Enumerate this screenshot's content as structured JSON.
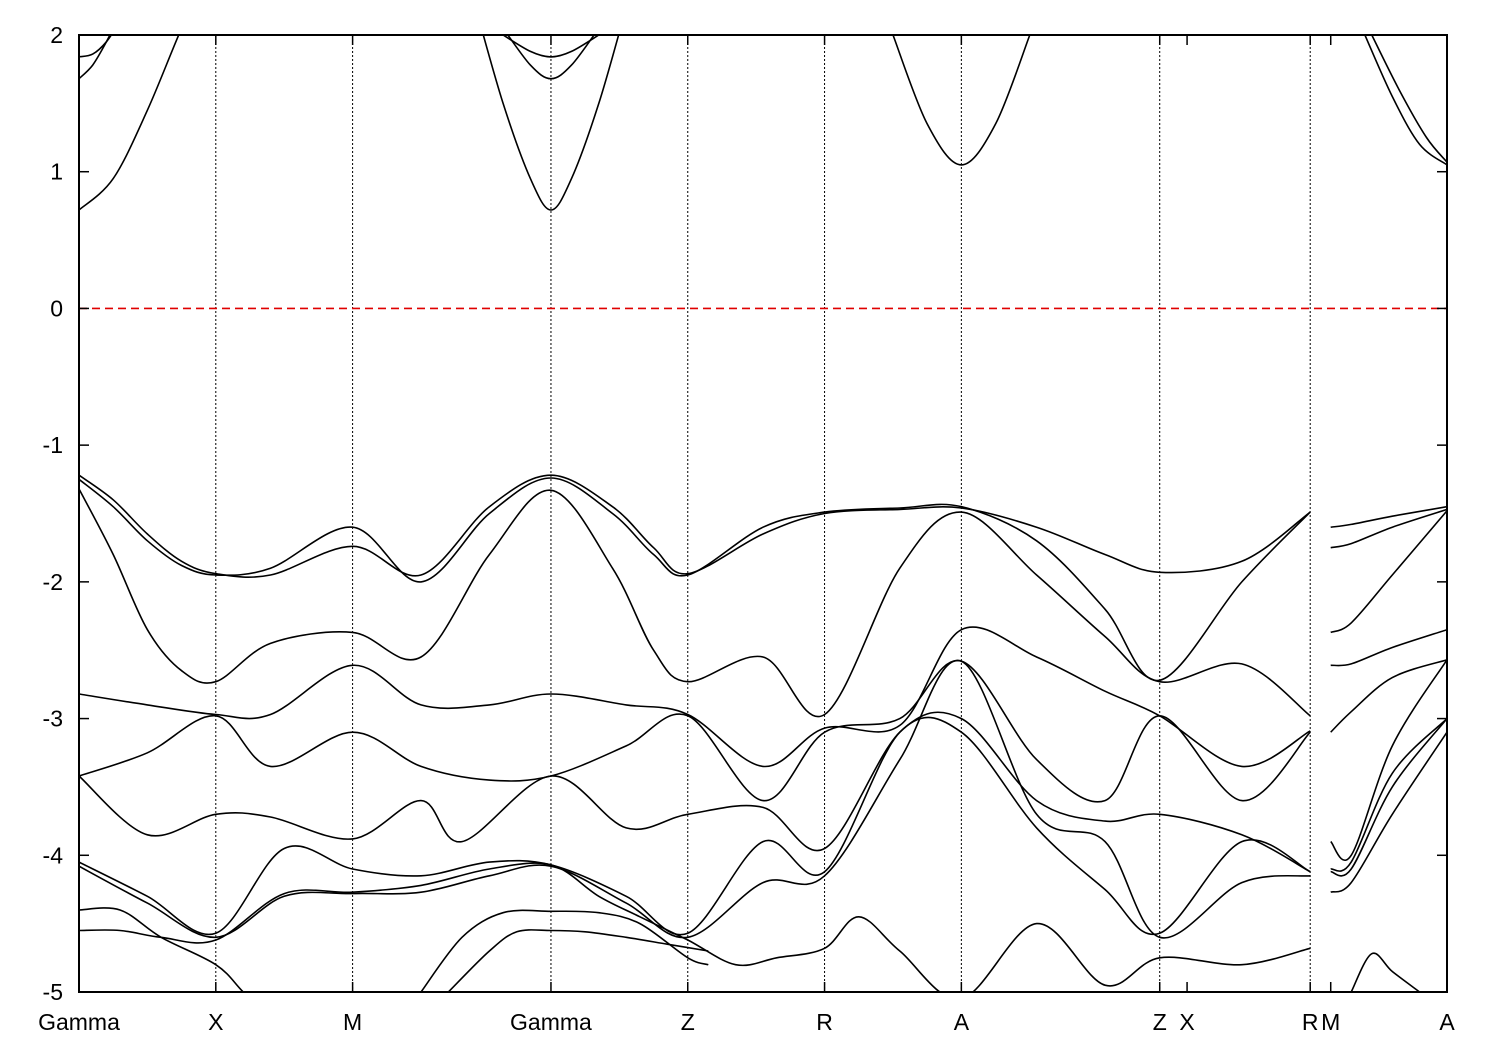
{
  "chart_data": {
    "type": "line",
    "title": "",
    "xlabel": "",
    "ylabel": "",
    "ylim": [
      -5,
      2
    ],
    "yticks": [
      -5,
      -4,
      -3,
      -2,
      -1,
      0,
      1,
      2
    ],
    "ytick_labels": [
      "-5",
      "-4",
      "-3",
      "-2",
      "-1",
      "0",
      "1",
      "2"
    ],
    "xlim": [
      0,
      10
    ],
    "kpoints": [
      {
        "label": "Gamma",
        "x": 0,
        "line": false
      },
      {
        "label": "X",
        "x": 1.0,
        "line": true
      },
      {
        "label": "M",
        "x": 2.0,
        "line": true
      },
      {
        "label": "Gamma",
        "x": 3.45,
        "line": true
      },
      {
        "label": "Z",
        "x": 4.45,
        "line": true
      },
      {
        "label": "R",
        "x": 5.45,
        "line": true
      },
      {
        "label": "A",
        "x": 6.45,
        "line": true
      },
      {
        "label": "Z",
        "x": 7.9,
        "line": true
      },
      {
        "label": "X",
        "x": 8.1,
        "line": false
      },
      {
        "label": "R",
        "x": 9.0,
        "line": true
      },
      {
        "label": "M",
        "x": 9.15,
        "line": false
      },
      {
        "label": "A",
        "x": 10.0,
        "line": false
      }
    ],
    "fermi_level": {
      "y": 0,
      "color": "#e00000"
    },
    "series": [
      {
        "x": [
          0,
          0.25,
          0.5,
          0.75,
          1.0
        ],
        "y": [
          0.72,
          0.95,
          1.45,
          2.05,
          2.6
        ]
      },
      {
        "x": [
          0,
          0.1,
          0.2,
          0.3
        ],
        "y": [
          1.68,
          1.78,
          1.95,
          2.15
        ]
      },
      {
        "x": [
          0,
          0.1,
          0.2,
          0.3
        ],
        "y": [
          1.84,
          1.86,
          1.95,
          2.1
        ]
      },
      {
        "x": [
          2.9,
          3.1,
          3.3,
          3.45,
          3.6,
          3.8,
          4.0
        ],
        "y": [
          2.2,
          1.5,
          0.95,
          0.72,
          0.95,
          1.5,
          2.2
        ]
      },
      {
        "x": [
          3.1,
          3.3,
          3.45,
          3.6,
          3.8
        ],
        "y": [
          2.05,
          1.78,
          1.68,
          1.78,
          2.05
        ]
      },
      {
        "x": [
          3.1,
          3.3,
          3.45,
          3.6,
          3.8
        ],
        "y": [
          2.0,
          1.88,
          1.84,
          1.88,
          2.0
        ]
      },
      {
        "x": [
          5.95,
          6.2,
          6.45,
          6.7,
          6.95
        ],
        "y": [
          2.0,
          1.35,
          1.05,
          1.35,
          2.0
        ]
      },
      {
        "x": [
          9.4,
          9.6,
          9.8,
          10.0
        ],
        "y": [
          2.0,
          1.55,
          1.2,
          1.05
        ]
      },
      {
        "x": [
          9.45,
          9.65,
          9.85,
          10.0
        ],
        "y": [
          2.0,
          1.6,
          1.25,
          1.07
        ]
      },
      {
        "x": [
          0,
          0.25,
          0.5,
          0.75,
          1.0,
          1.4,
          2.0,
          2.5,
          3.0,
          3.45,
          3.9,
          4.2,
          4.45,
          5.0,
          5.45,
          6.0,
          6.45,
          7.0,
          7.5,
          7.9,
          8.5,
          9.0
        ],
        "y": [
          -1.22,
          -1.4,
          -1.65,
          -1.85,
          -1.94,
          -1.95,
          -1.74,
          -1.95,
          -1.45,
          -1.22,
          -1.45,
          -1.75,
          -1.94,
          -1.65,
          -1.5,
          -1.47,
          -1.46,
          -1.6,
          -1.8,
          -1.93,
          -1.85,
          -1.49
        ]
      },
      {
        "x": [
          0,
          0.25,
          0.5,
          0.75,
          1.0,
          1.4,
          2.0,
          2.5,
          3.0,
          3.45,
          3.9,
          4.2,
          4.45,
          5.0,
          5.45,
          6.0,
          6.45,
          7.0,
          7.5,
          7.9,
          8.5,
          9.0
        ],
        "y": [
          -1.25,
          -1.45,
          -1.7,
          -1.88,
          -1.95,
          -1.9,
          -1.6,
          -2.0,
          -1.5,
          -1.24,
          -1.5,
          -1.8,
          -1.95,
          -1.6,
          -1.49,
          -1.46,
          -1.45,
          -1.7,
          -2.2,
          -2.72,
          -2.0,
          -1.49
        ]
      },
      {
        "x": [
          0,
          0.25,
          0.5,
          0.75,
          1.0,
          1.4,
          2.0,
          2.5,
          3.0,
          3.45,
          3.9,
          4.2,
          4.45,
          5.0,
          5.45,
          6.0,
          6.45,
          7.0,
          7.5,
          7.9,
          8.5,
          9.0
        ],
        "y": [
          -1.32,
          -1.8,
          -2.35,
          -2.65,
          -2.73,
          -2.45,
          -2.37,
          -2.55,
          -1.8,
          -1.33,
          -1.9,
          -2.5,
          -2.73,
          -2.55,
          -2.97,
          -1.9,
          -1.49,
          -1.95,
          -2.4,
          -2.73,
          -2.6,
          -2.98
        ]
      },
      {
        "x": [
          0,
          0.5,
          1.0,
          1.4,
          2.0,
          2.5,
          3.0,
          3.45,
          4.0,
          4.45,
          5.0,
          5.45,
          6.0,
          6.45,
          7.0,
          7.5,
          7.9,
          8.5,
          9.0
        ],
        "y": [
          -2.82,
          -2.9,
          -2.97,
          -2.97,
          -2.61,
          -2.9,
          -2.9,
          -2.82,
          -2.9,
          -2.97,
          -3.35,
          -3.07,
          -3.05,
          -2.35,
          -2.55,
          -2.8,
          -2.98,
          -3.35,
          -3.09
        ]
      },
      {
        "x": [
          0,
          0.5,
          1.0,
          1.4,
          2.0,
          2.5,
          3.0,
          3.45,
          4.0,
          4.45,
          5.0,
          5.45,
          6.0,
          6.45,
          7.0,
          7.5,
          7.9,
          8.5,
          9.0
        ],
        "y": [
          -3.42,
          -3.25,
          -2.98,
          -3.35,
          -3.1,
          -3.35,
          -3.45,
          -3.42,
          -3.2,
          -2.98,
          -3.6,
          -3.1,
          -3.0,
          -2.58,
          -3.3,
          -3.6,
          -2.98,
          -3.6,
          -3.1
        ]
      },
      {
        "x": [
          0,
          0.5,
          1.0,
          1.4,
          2.0,
          2.5,
          2.8,
          3.45,
          4.0,
          4.45,
          5.0,
          5.45,
          6.0,
          6.45,
          7.0,
          7.5,
          7.9,
          8.5,
          9.0
        ],
        "y": [
          -3.42,
          -3.85,
          -3.7,
          -3.72,
          -3.88,
          -3.6,
          -3.9,
          -3.42,
          -3.8,
          -3.7,
          -3.65,
          -3.95,
          -3.1,
          -3.0,
          -3.6,
          -3.75,
          -3.7,
          -3.85,
          -4.12
        ]
      },
      {
        "x": [
          0,
          0.5,
          1.0,
          1.5,
          2.0,
          2.5,
          3.0,
          3.45,
          4.0,
          4.45,
          5.0,
          5.45,
          6.0,
          6.45,
          7.0,
          7.5,
          7.9,
          8.5,
          9.0
        ],
        "y": [
          -4.05,
          -4.3,
          -4.57,
          -3.95,
          -4.1,
          -4.15,
          -4.05,
          -4.07,
          -4.3,
          -4.57,
          -3.9,
          -4.12,
          -3.1,
          -3.1,
          -3.8,
          -4.25,
          -4.57,
          -3.9,
          -4.12
        ]
      },
      {
        "x": [
          0,
          0.5,
          1.0,
          1.5,
          2.0,
          2.5,
          3.0,
          3.45,
          4.0,
          4.45,
          5.0,
          5.45,
          6.0,
          6.45,
          7.0,
          7.5,
          7.9,
          8.5,
          9.0
        ],
        "y": [
          -4.08,
          -4.35,
          -4.6,
          -4.3,
          -4.28,
          -4.27,
          -4.15,
          -4.08,
          -4.35,
          -4.6,
          -4.2,
          -4.15,
          -3.3,
          -2.58,
          -3.7,
          -3.9,
          -4.6,
          -4.2,
          -4.15
        ]
      },
      {
        "x": [
          0,
          0.3,
          0.6,
          1.0,
          1.5,
          2.0,
          2.5,
          3.0,
          3.45,
          3.8,
          4.1,
          4.45,
          4.8,
          5.1,
          5.45,
          5.7,
          6.0,
          6.45,
          7.0,
          7.5,
          7.9,
          8.5,
          9.0
        ],
        "y": [
          -4.55,
          -4.55,
          -4.6,
          -4.62,
          -4.28,
          -4.27,
          -4.22,
          -4.1,
          -4.07,
          -4.3,
          -4.45,
          -4.62,
          -4.8,
          -4.75,
          -4.68,
          -4.45,
          -4.7,
          -5.05,
          -4.5,
          -4.95,
          -4.75,
          -4.8,
          -4.68
        ]
      },
      {
        "x": [
          0,
          0.3,
          0.6,
          1.0,
          1.2,
          1.4
        ],
        "y": [
          -4.4,
          -4.4,
          -4.6,
          -4.8,
          -5.0,
          -5.2
        ]
      },
      {
        "x": [
          2.5,
          2.8,
          3.1,
          3.45,
          3.8,
          4.1,
          4.45,
          4.6
        ],
        "y": [
          -5.0,
          -4.6,
          -4.42,
          -4.41,
          -4.42,
          -4.5,
          -4.75,
          -4.8
        ]
      },
      {
        "x": [
          2.7,
          3.0,
          3.2,
          3.45,
          3.7,
          4.0,
          4.3,
          4.6
        ],
        "y": [
          -5.0,
          -4.7,
          -4.56,
          -4.55,
          -4.56,
          -4.6,
          -4.65,
          -4.7
        ]
      },
      {
        "x": [
          9.15,
          9.3,
          9.6,
          10.0
        ],
        "y": [
          -1.6,
          -1.58,
          -1.52,
          -1.45
        ]
      },
      {
        "x": [
          9.15,
          9.3,
          9.6,
          10.0
        ],
        "y": [
          -1.75,
          -1.72,
          -1.6,
          -1.47
        ]
      },
      {
        "x": [
          9.15,
          9.3,
          9.6,
          10.0
        ],
        "y": [
          -2.37,
          -2.3,
          -1.95,
          -1.48
        ]
      },
      {
        "x": [
          9.15,
          9.3,
          9.6,
          10.0
        ],
        "y": [
          -2.61,
          -2.6,
          -2.48,
          -2.35
        ]
      },
      {
        "x": [
          9.15,
          9.3,
          9.6,
          10.0
        ],
        "y": [
          -3.1,
          -2.95,
          -2.7,
          -2.57
        ]
      },
      {
        "x": [
          9.15,
          9.3,
          9.6,
          10.0
        ],
        "y": [
          -3.9,
          -4.0,
          -3.2,
          -2.57
        ]
      },
      {
        "x": [
          9.15,
          9.3,
          9.6,
          10.0
        ],
        "y": [
          -4.1,
          -4.05,
          -3.4,
          -3.0
        ]
      },
      {
        "x": [
          9.15,
          9.3,
          9.6,
          10.0
        ],
        "y": [
          -4.27,
          -4.2,
          -3.7,
          -3.1
        ]
      },
      {
        "x": [
          9.15,
          9.3,
          9.6,
          10.0
        ],
        "y": [
          -4.12,
          -4.1,
          -3.5,
          -3.0
        ]
      },
      {
        "x": [
          9.3,
          9.45,
          9.6,
          9.8
        ],
        "y": [
          -5.0,
          -4.72,
          -4.85,
          -5.0
        ]
      }
    ]
  }
}
